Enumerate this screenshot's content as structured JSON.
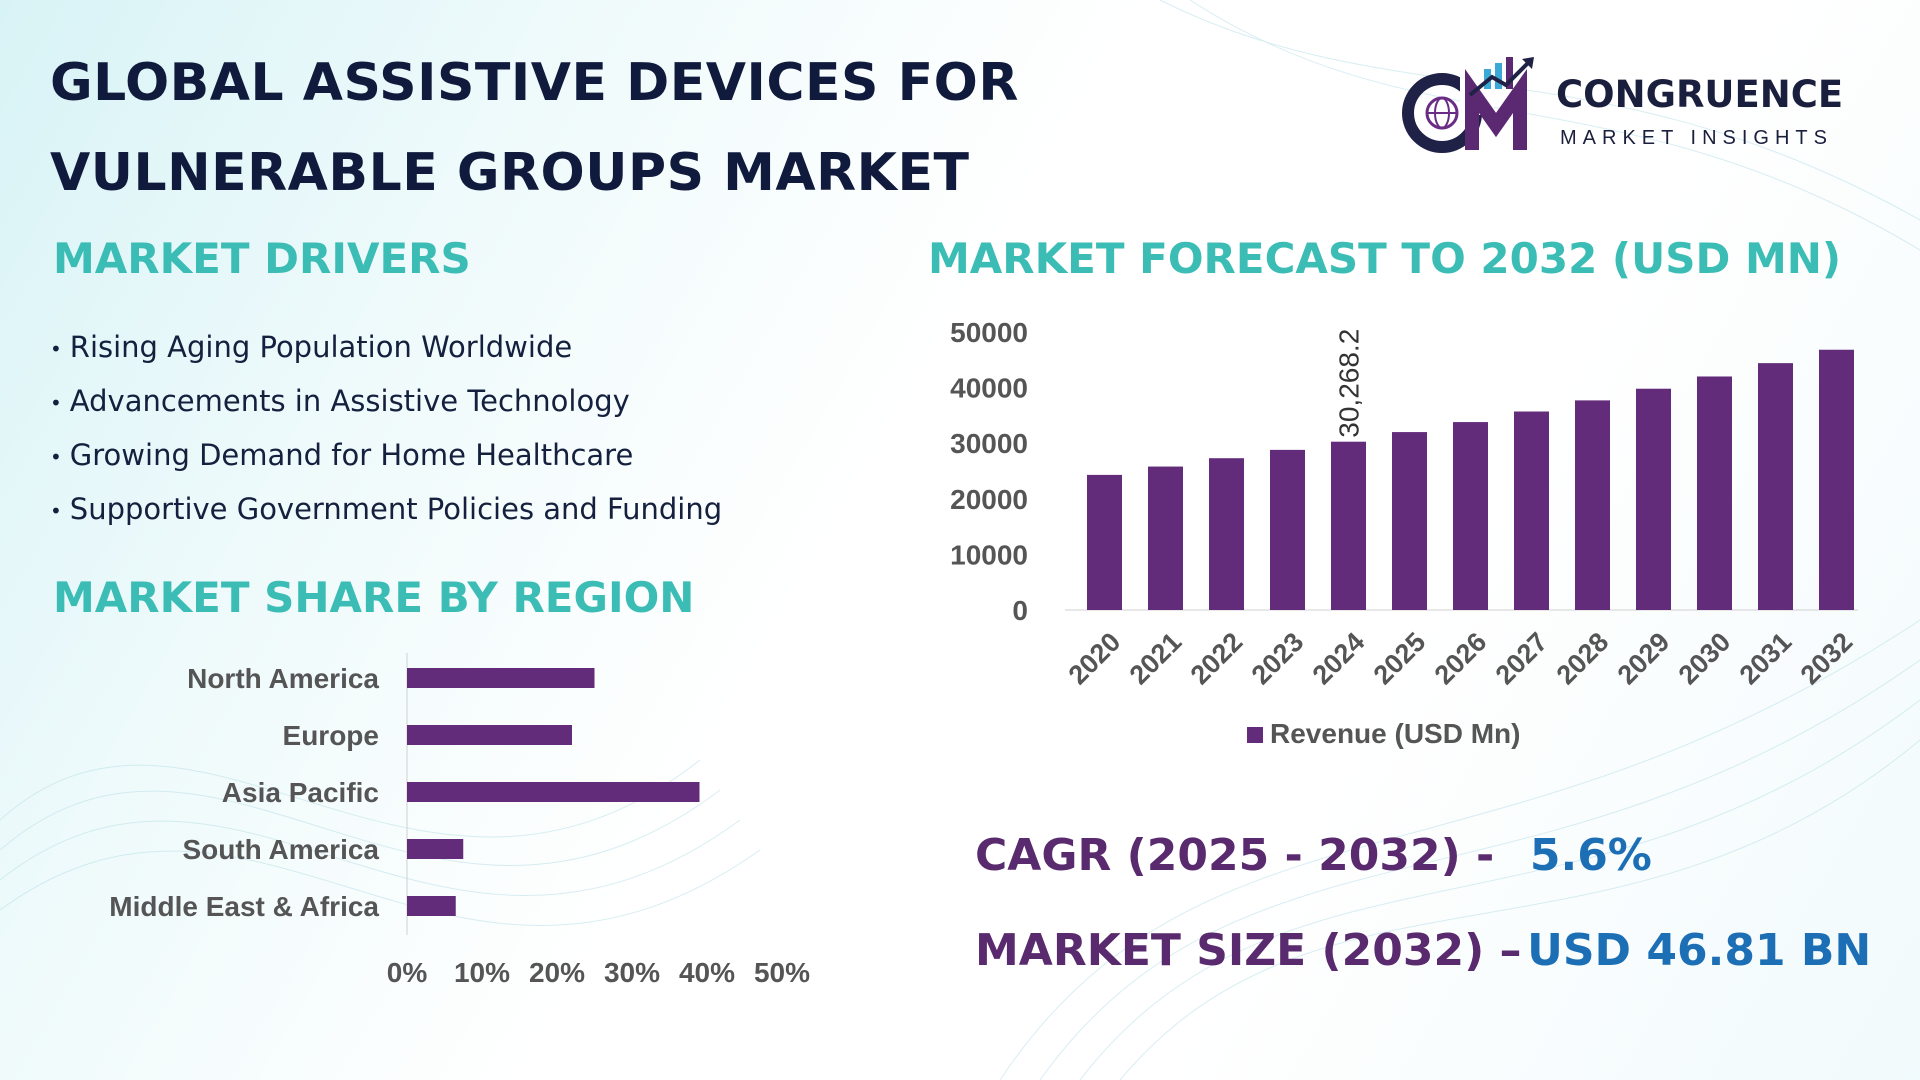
{
  "title": {
    "line1": "GLOBAL ASSISTIVE DEVICES FOR",
    "line2": "VULNERABLE GROUPS MARKET"
  },
  "logo": {
    "name": "CONGRUENCE",
    "tagline": "MARKET INSIGHTS",
    "mark_icon": "cm-globe-chart-icon"
  },
  "sections": {
    "drivers": "MARKET DRIVERS",
    "region": "MARKET SHARE BY REGION",
    "forecast": "MARKET FORECAST TO 2032 (USD MN)"
  },
  "drivers": [
    "Rising Aging Population Worldwide",
    "Advancements in Assistive Technology",
    "Growing Demand for Home Healthcare",
    "Supportive Government Policies and Funding"
  ],
  "bullet_char": "•",
  "kpis": {
    "cagr_label": "CAGR (2025 - 2032) -",
    "cagr_value": "5.6%",
    "size_label": "MARKET SIZE (2032) –",
    "size_value": "USD 46.81 BN"
  },
  "colors": {
    "bar": "#622c7a",
    "section_title": "#3bbdb5",
    "kpi_label": "#5a2a6e",
    "kpi_value": "#1d6fb5",
    "axis_text": "#555555"
  },
  "chart_data": [
    {
      "type": "bar",
      "orientation": "horizontal",
      "title": "MARKET SHARE BY REGION",
      "categories": [
        "North America",
        "Europe",
        "Asia Pacific",
        "South America",
        "Middle East & Africa"
      ],
      "values": [
        25,
        22,
        39,
        7.5,
        6.5
      ],
      "unit": "%",
      "xlim": [
        0,
        50
      ],
      "ticks": [
        "0%",
        "10%",
        "20%",
        "30%",
        "40%",
        "50%"
      ],
      "grid": false,
      "legend": "none"
    },
    {
      "type": "bar",
      "orientation": "vertical",
      "title": "MARKET FORECAST TO 2032 (USD MN)",
      "categories": [
        "2020",
        "2021",
        "2022",
        "2023",
        "2024",
        "2025",
        "2026",
        "2027",
        "2028",
        "2029",
        "2030",
        "2031",
        "2032"
      ],
      "series": [
        {
          "name": "Revenue (USD Mn)",
          "values": [
            24300,
            25800,
            27300,
            28800,
            30268.2,
            32000,
            33800,
            35700,
            37700,
            39800,
            42000,
            44400,
            46810
          ]
        }
      ],
      "annotation": {
        "category": "2024",
        "text": "30,268.2"
      },
      "ylim": [
        0,
        50000
      ],
      "yticks": [
        "0",
        "10000",
        "20000",
        "30000",
        "40000",
        "50000"
      ],
      "grid": false,
      "legend": "bottom"
    }
  ]
}
